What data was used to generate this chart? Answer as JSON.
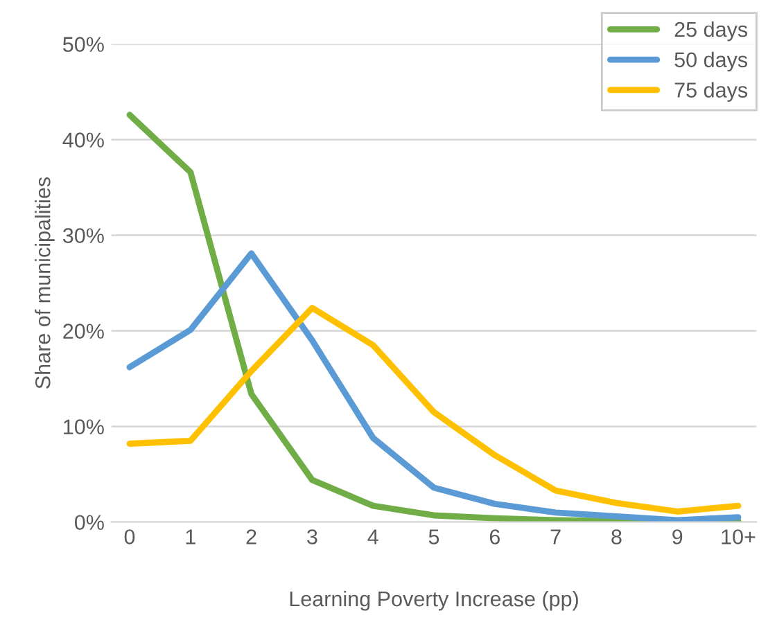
{
  "chart_data": {
    "type": "line",
    "xlabel": "Learning Poverty Increase (pp)",
    "ylabel": "Share of municipalities",
    "categories": [
      "0",
      "1",
      "2",
      "3",
      "4",
      "5",
      "6",
      "7",
      "8",
      "9",
      "10+"
    ],
    "series": [
      {
        "name": "25 days",
        "color": "#70ad47",
        "values": [
          42.6,
          36.6,
          13.4,
          4.4,
          1.7,
          0.7,
          0.4,
          0.2,
          0.1,
          0.0,
          0.1
        ]
      },
      {
        "name": "50 days",
        "color": "#5b9bd5",
        "values": [
          16.2,
          20.1,
          28.1,
          19.0,
          8.8,
          3.6,
          1.9,
          1.0,
          0.6,
          0.2,
          0.5
        ]
      },
      {
        "name": "75 days",
        "color": "#ffc000",
        "values": [
          8.2,
          8.5,
          15.8,
          22.4,
          18.5,
          11.5,
          7.0,
          3.3,
          2.0,
          1.1,
          1.7
        ]
      }
    ],
    "ylim": [
      0,
      50
    ],
    "yticks": [
      {
        "value": 0,
        "label": "0%"
      },
      {
        "value": 10,
        "label": "10%"
      },
      {
        "value": 20,
        "label": "20%"
      },
      {
        "value": 30,
        "label": "30%"
      },
      {
        "value": 40,
        "label": "40%"
      },
      {
        "value": 50,
        "label": "50%"
      }
    ],
    "grid": "y",
    "legend": "top right",
    "marker": "none",
    "line_style": "solid"
  }
}
